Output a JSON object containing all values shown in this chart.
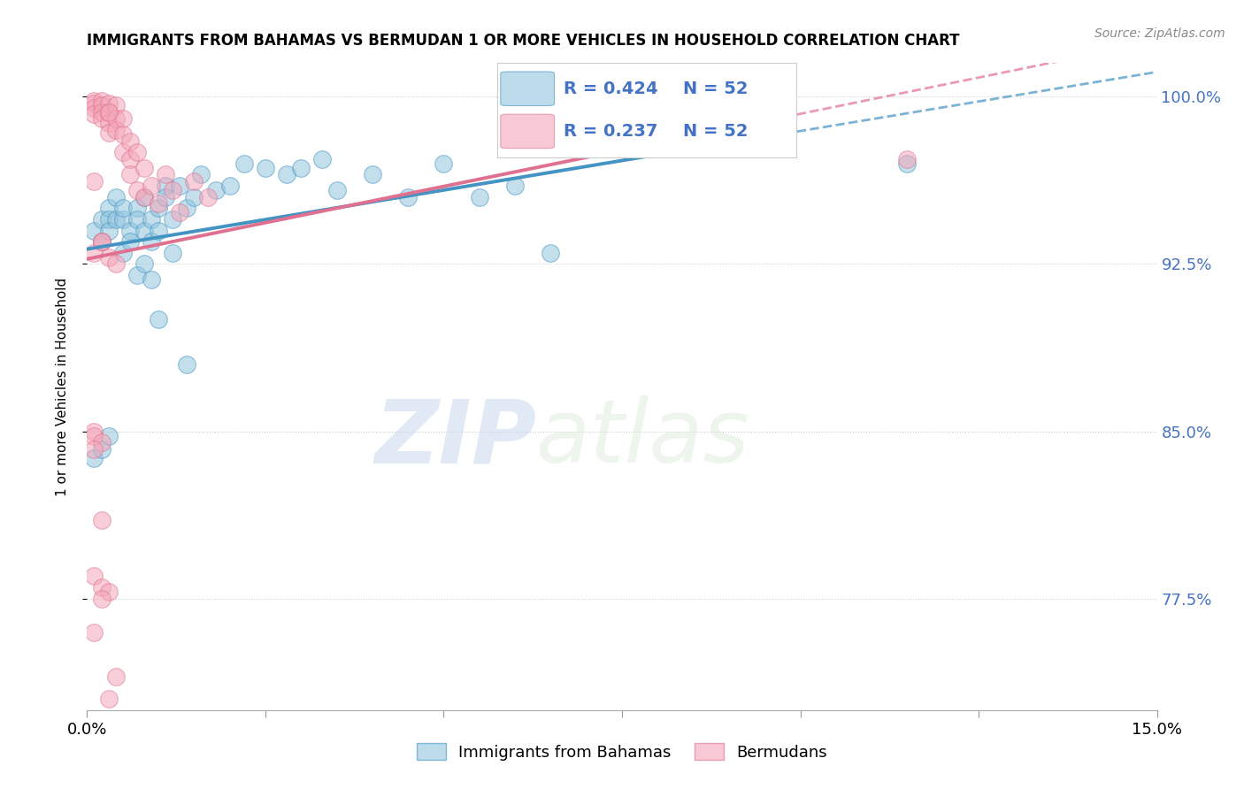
{
  "title": "IMMIGRANTS FROM BAHAMAS VS BERMUDAN 1 OR MORE VEHICLES IN HOUSEHOLD CORRELATION CHART",
  "source": "Source: ZipAtlas.com",
  "ylabel": "1 or more Vehicles in Household",
  "xlim": [
    0.0,
    0.15
  ],
  "ylim": [
    0.725,
    1.015
  ],
  "yticks": [
    0.775,
    0.85,
    0.925,
    1.0
  ],
  "ytick_labels": [
    "77.5%",
    "85.0%",
    "92.5%",
    "100.0%"
  ],
  "xticks": [
    0.0,
    0.025,
    0.05,
    0.075,
    0.1,
    0.125,
    0.15
  ],
  "xtick_labels": [
    "0.0%",
    "",
    "",
    "",
    "",
    "",
    "15.0%"
  ],
  "legend_blue_label": "Immigrants from Bahamas",
  "legend_pink_label": "Bermudans",
  "R_blue": 0.424,
  "N_blue": 52,
  "R_pink": 0.237,
  "N_pink": 52,
  "blue_color": "#92c5de",
  "pink_color": "#f4a6b8",
  "blue_line_color": "#4393c3",
  "pink_line_color": "#e07090",
  "blue_scatter_x": [
    0.001,
    0.002,
    0.002,
    0.003,
    0.003,
    0.003,
    0.004,
    0.004,
    0.005,
    0.005,
    0.005,
    0.006,
    0.006,
    0.007,
    0.007,
    0.008,
    0.008,
    0.009,
    0.009,
    0.01,
    0.01,
    0.011,
    0.011,
    0.012,
    0.013,
    0.014,
    0.015,
    0.016,
    0.018,
    0.02,
    0.022,
    0.025,
    0.028,
    0.03,
    0.033,
    0.035,
    0.04,
    0.045,
    0.05,
    0.055,
    0.06,
    0.065,
    0.007,
    0.008,
    0.009,
    0.01,
    0.012,
    0.014,
    0.001,
    0.002,
    0.003,
    0.115
  ],
  "blue_scatter_y": [
    0.94,
    0.935,
    0.945,
    0.95,
    0.945,
    0.94,
    0.955,
    0.945,
    0.93,
    0.945,
    0.95,
    0.94,
    0.935,
    0.95,
    0.945,
    0.94,
    0.955,
    0.945,
    0.935,
    0.95,
    0.94,
    0.96,
    0.955,
    0.945,
    0.96,
    0.95,
    0.955,
    0.965,
    0.958,
    0.96,
    0.97,
    0.968,
    0.965,
    0.968,
    0.972,
    0.958,
    0.965,
    0.955,
    0.97,
    0.955,
    0.96,
    0.93,
    0.92,
    0.925,
    0.918,
    0.9,
    0.93,
    0.88,
    0.838,
    0.842,
    0.848,
    0.97
  ],
  "pink_scatter_x": [
    0.001,
    0.001,
    0.001,
    0.001,
    0.002,
    0.002,
    0.002,
    0.002,
    0.003,
    0.003,
    0.003,
    0.003,
    0.004,
    0.004,
    0.004,
    0.005,
    0.005,
    0.005,
    0.006,
    0.006,
    0.006,
    0.007,
    0.007,
    0.008,
    0.008,
    0.009,
    0.01,
    0.011,
    0.012,
    0.013,
    0.015,
    0.017,
    0.001,
    0.002,
    0.003,
    0.004,
    0.001,
    0.001,
    0.002,
    0.001,
    0.001,
    0.002,
    0.003,
    0.002,
    0.001,
    0.002,
    0.003,
    0.004,
    0.002,
    0.003,
    0.001,
    0.115
  ],
  "pink_scatter_y": [
    0.998,
    0.997,
    0.995,
    0.992,
    0.998,
    0.996,
    0.993,
    0.99,
    0.997,
    0.993,
    0.988,
    0.984,
    0.996,
    0.99,
    0.985,
    0.99,
    0.983,
    0.975,
    0.98,
    0.972,
    0.965,
    0.975,
    0.958,
    0.968,
    0.955,
    0.96,
    0.952,
    0.965,
    0.958,
    0.948,
    0.962,
    0.955,
    0.93,
    0.935,
    0.928,
    0.925,
    0.85,
    0.848,
    0.845,
    0.842,
    0.785,
    0.78,
    0.778,
    0.775,
    0.76,
    0.81,
    0.73,
    0.74,
    0.935,
    0.993,
    0.962,
    0.972
  ],
  "watermark_zip": "ZIP",
  "watermark_atlas": "atlas",
  "background_color": "#ffffff"
}
